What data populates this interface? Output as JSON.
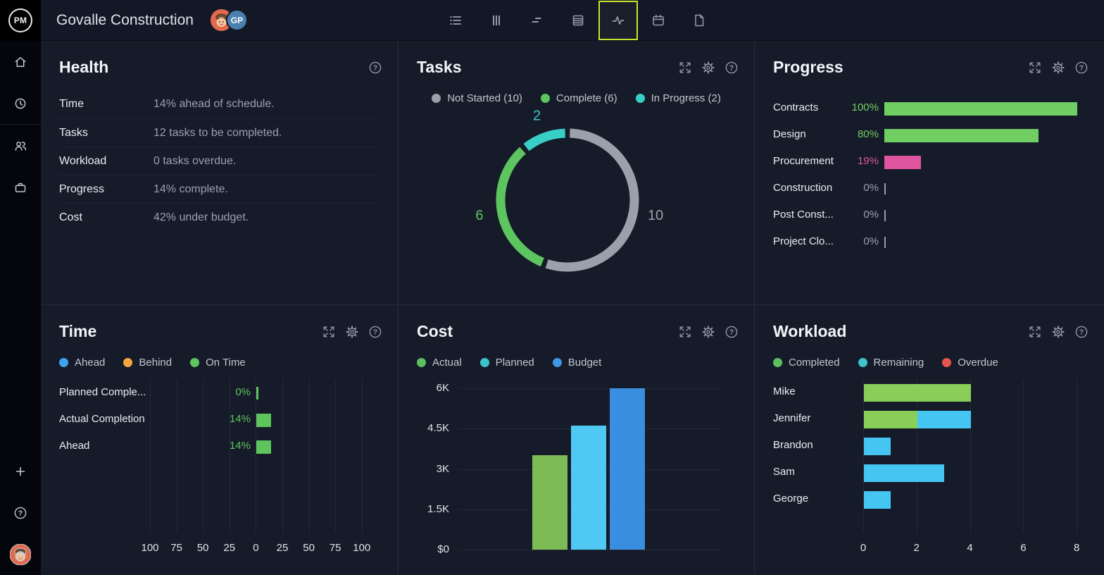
{
  "topbar": {
    "logo_text": "PM",
    "project_title": "Govalle Construction",
    "avatars": [
      {
        "name": "user-avatar",
        "type": "face"
      },
      {
        "name": "gp-avatar",
        "type": "initials",
        "initials": "GP",
        "color": "#4a80ad"
      }
    ],
    "tools": [
      {
        "id": "list",
        "active": false
      },
      {
        "id": "board",
        "active": false
      },
      {
        "id": "gantt",
        "active": false
      },
      {
        "id": "sheet",
        "active": false
      },
      {
        "id": "activity",
        "active": true
      },
      {
        "id": "calendar",
        "active": false
      },
      {
        "id": "document",
        "active": false
      }
    ],
    "active_border_color": "#c8e32f"
  },
  "sidebar": {
    "top_icons": [
      "home",
      "clock",
      "team",
      "portfolio"
    ],
    "bottom_icons": [
      "plus",
      "help"
    ],
    "has_user_avatar": true
  },
  "panels": {
    "health": {
      "title": "Health",
      "rows": [
        {
          "label": "Time",
          "value": "14% ahead of schedule."
        },
        {
          "label": "Tasks",
          "value": "12 tasks to be completed."
        },
        {
          "label": "Workload",
          "value": "0 tasks overdue."
        },
        {
          "label": "Progress",
          "value": "14% complete."
        },
        {
          "label": "Cost",
          "value": "42% under budget."
        }
      ]
    },
    "tasks": {
      "title": "Tasks"
    },
    "progress": {
      "title": "Progress"
    },
    "time": {
      "title": "Time"
    },
    "cost": {
      "title": "Cost"
    },
    "workload": {
      "title": "Workload"
    }
  },
  "chart_data": [
    {
      "id": "tasks",
      "type": "donut",
      "title": "Tasks",
      "legend": [
        {
          "label": "Not Started (10)",
          "color": "#9aa1ab"
        },
        {
          "label": "Complete (6)",
          "color": "#5dc55f"
        },
        {
          "label": "In Progress (2)",
          "color": "#38cfc6"
        }
      ],
      "segments": [
        {
          "name": "Not Started",
          "value": 10,
          "label": "10",
          "color": "#9aa1ab"
        },
        {
          "name": "Complete",
          "value": 6,
          "label": "6",
          "color": "#5dc55f"
        },
        {
          "name": "In Progress",
          "value": 2,
          "label": "2",
          "color": "#38cfc6"
        }
      ],
      "total": 18,
      "start": "top",
      "direction": "clockwise"
    },
    {
      "id": "progress",
      "type": "bar",
      "title": "Progress",
      "categories": [
        "Contracts",
        "Design",
        "Procurement",
        "Construction",
        "Post Const...",
        "Project Clo..."
      ],
      "values": [
        100,
        80,
        19,
        0,
        0,
        0
      ],
      "value_labels": [
        "100%",
        "80%",
        "19%",
        "0%",
        "0%",
        "0%"
      ],
      "bar_colors": [
        "#71ce63",
        "#71ce63",
        "#e0559f",
        null,
        null,
        null
      ],
      "label_colors": [
        "#71ce63",
        "#71ce63",
        "#e0559f",
        "#99a1ae",
        "#99a1ae",
        "#99a1ae"
      ],
      "xlim": [
        0,
        100
      ]
    },
    {
      "id": "time",
      "type": "bar",
      "title": "Time",
      "legend": [
        {
          "label": "Ahead",
          "color": "#3fa3ef"
        },
        {
          "label": "Behind",
          "color": "#f3a73c"
        },
        {
          "label": "On Time",
          "color": "#5ec45e"
        }
      ],
      "categories": [
        "Planned Comple...",
        "Actual Completion",
        "Ahead"
      ],
      "values": [
        0,
        14,
        14
      ],
      "value_labels": [
        "0%",
        "14%",
        "14%"
      ],
      "bar_color": "#5ec45e",
      "label_color": "#5ec45e",
      "axis_ticks": [
        -100,
        -75,
        -50,
        -25,
        0,
        25,
        50,
        75,
        100
      ],
      "axis_tick_labels": [
        "100",
        "75",
        "50",
        "25",
        "0",
        "25",
        "50",
        "75",
        "100"
      ],
      "xlim": [
        -100,
        100
      ]
    },
    {
      "id": "cost",
      "type": "bar",
      "title": "Cost",
      "legend": [
        {
          "label": "Actual",
          "color": "#5cc05e"
        },
        {
          "label": "Planned",
          "color": "#3fc3cd"
        },
        {
          "label": "Budget",
          "color": "#3e97e8"
        }
      ],
      "categories": [
        "Actual",
        "Planned",
        "Budget"
      ],
      "values": [
        3500,
        4600,
        6000
      ],
      "bar_colors": [
        "#7dbb55",
        "#4fc9f3",
        "#3a8ee0"
      ],
      "y_ticks": [
        0,
        1500,
        3000,
        4500,
        6000
      ],
      "y_tick_labels": [
        "$0",
        "1.5K",
        "3K",
        "4.5K",
        "6K"
      ],
      "ylim": [
        0,
        6000
      ]
    },
    {
      "id": "workload",
      "type": "bar",
      "title": "Workload",
      "legend": [
        {
          "label": "Completed",
          "color": "#5cc05e"
        },
        {
          "label": "Remaining",
          "color": "#3fc3cd"
        },
        {
          "label": "Overdue",
          "color": "#e8534a"
        }
      ],
      "categories": [
        "Mike",
        "Jennifer",
        "Brandon",
        "Sam",
        "George"
      ],
      "series": [
        {
          "name": "Completed",
          "color": "#8ace5a",
          "values": [
            4,
            2,
            0,
            0,
            0
          ]
        },
        {
          "name": "Remaining",
          "color": "#45c6f2",
          "values": [
            0,
            2,
            1,
            3,
            1
          ]
        }
      ],
      "axis_ticks": [
        0,
        2,
        4,
        6,
        8
      ],
      "axis_tick_labels": [
        "0",
        "2",
        "4",
        "6",
        "8"
      ],
      "xlim": [
        0,
        8
      ]
    }
  ]
}
